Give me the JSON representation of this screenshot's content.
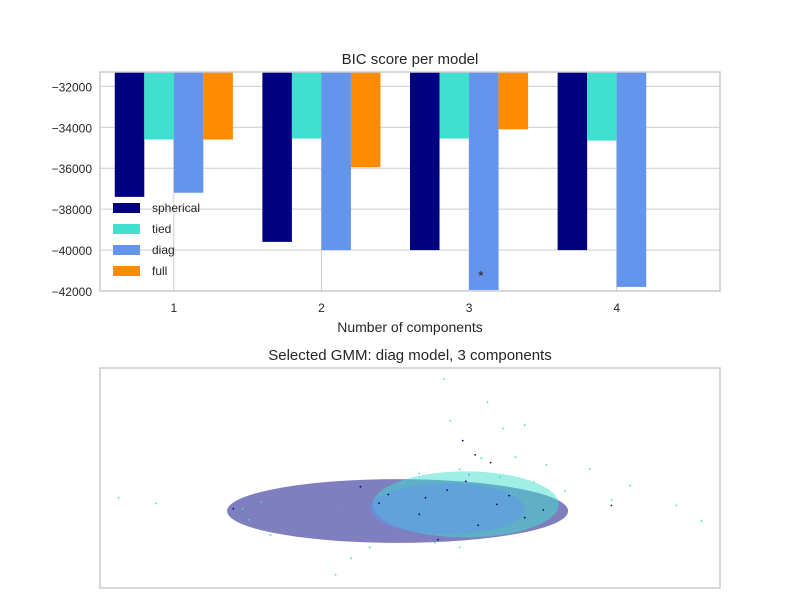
{
  "chart_data": [
    {
      "type": "bar",
      "title": "BIC score per model",
      "xlabel": "Number of components",
      "ylabel": "",
      "categories": [
        "1",
        "2",
        "3",
        "4"
      ],
      "ylim": [
        -42000,
        -31300
      ],
      "yticks": [
        -32000,
        -34000,
        -36000,
        -38000,
        -40000,
        -42000
      ],
      "ytick_labels": [
        "−32000",
        "−34000",
        "−36000",
        "−38000",
        "−40000",
        "−42000"
      ],
      "grid": true,
      "legend_position": "lower-left",
      "series": [
        {
          "name": "spherical",
          "color": "#000080",
          "values": [
            -37400,
            -39600,
            -40000,
            -40000
          ]
        },
        {
          "name": "tied",
          "color": "#40e0d0",
          "values": [
            -34600,
            -34550,
            -34550,
            -34650
          ]
        },
        {
          "name": "diag",
          "color": "#6495ed",
          "values": [
            -37200,
            -40000,
            -41950,
            -41800
          ]
        },
        {
          "name": "full",
          "color": "#ff8c00",
          "values": [
            -34600,
            -35950,
            -34100,
            null
          ]
        }
      ],
      "annotation": {
        "text": "*",
        "category": "3",
        "y": -41200
      }
    },
    {
      "type": "scatter",
      "title": "Selected GMM: diag model, 3 components",
      "xlabel": "",
      "ylabel": "",
      "xlim": [
        -10,
        10
      ],
      "ylim": [
        -10,
        10
      ],
      "grid": false,
      "components": [
        {
          "color": "#000080",
          "center": [
            -0.4,
            -3.0
          ],
          "width": 11.0,
          "height": 5.8
        },
        {
          "color": "#40e0d0",
          "center": [
            1.8,
            -2.4
          ],
          "width": 6.0,
          "height": 6.0
        },
        {
          "color": "#6495ed",
          "center": [
            1.2,
            -2.8
          ],
          "width": 5.0,
          "height": 4.6
        }
      ],
      "points": [
        {
          "color": "#40e0d0",
          "x": -9.4,
          "y": -1.8
        },
        {
          "color": "#40e0d0",
          "x": -8.2,
          "y": -2.3
        },
        {
          "color": "#40e0d0",
          "x": -5.4,
          "y": -2.8
        },
        {
          "color": "#40e0d0",
          "x": -4.8,
          "y": -2.2
        },
        {
          "color": "#40e0d0",
          "x": -5.2,
          "y": -3.8
        },
        {
          "color": "#40e0d0",
          "x": -4.5,
          "y": -5.2
        },
        {
          "color": "#40e0d0",
          "x": -2.4,
          "y": -8.8
        },
        {
          "color": "#40e0d0",
          "x": -1.9,
          "y": -7.3
        },
        {
          "color": "#40e0d0",
          "x": 1.1,
          "y": 9.0
        },
        {
          "color": "#40e0d0",
          "x": 2.5,
          "y": 6.9
        },
        {
          "color": "#40e0d0",
          "x": 1.3,
          "y": 5.2
        },
        {
          "color": "#40e0d0",
          "x": 3.0,
          "y": 4.5
        },
        {
          "color": "#40e0d0",
          "x": 3.7,
          "y": 4.8
        },
        {
          "color": "#40e0d0",
          "x": 4.4,
          "y": 1.2
        },
        {
          "color": "#40e0d0",
          "x": 3.4,
          "y": 1.9
        },
        {
          "color": "#40e0d0",
          "x": 5.8,
          "y": 0.8
        },
        {
          "color": "#40e0d0",
          "x": 7.1,
          "y": -0.7
        },
        {
          "color": "#40e0d0",
          "x": 8.6,
          "y": -2.5
        },
        {
          "color": "#40e0d0",
          "x": 9.4,
          "y": -3.9
        },
        {
          "color": "#40e0d0",
          "x": 6.5,
          "y": -2.0
        },
        {
          "color": "#40e0d0",
          "x": -1.3,
          "y": -6.3
        },
        {
          "color": "#40e0d0",
          "x": 0.8,
          "y": -5.9
        },
        {
          "color": "#40e0d0",
          "x": 1.6,
          "y": -6.3
        },
        {
          "color": "#40e0d0",
          "x": 5.0,
          "y": -1.2
        },
        {
          "color": "#40e0d0",
          "x": 0.3,
          "y": 0.4
        },
        {
          "color": "#40e0d0",
          "x": -0.2,
          "y": -0.5
        },
        {
          "color": "#40e0d0",
          "x": 1.6,
          "y": 0.8
        },
        {
          "color": "#40e0d0",
          "x": 2.3,
          "y": 1.8
        },
        {
          "color": "#40e0d0",
          "x": 2.9,
          "y": 0.1
        },
        {
          "color": "#40e0d0",
          "x": 4.0,
          "y": -0.4
        },
        {
          "color": "#000080",
          "x": 1.7,
          "y": 3.4
        },
        {
          "color": "#000080",
          "x": 2.1,
          "y": 2.1
        },
        {
          "color": "#000080",
          "x": 2.6,
          "y": 1.4
        },
        {
          "color": "#000080",
          "x": -1.0,
          "y": -2.3
        },
        {
          "color": "#000080",
          "x": -0.7,
          "y": -1.5
        },
        {
          "color": "#000080",
          "x": 0.3,
          "y": -3.3
        },
        {
          "color": "#000080",
          "x": 1.2,
          "y": -1.1
        },
        {
          "color": "#000080",
          "x": 2.8,
          "y": -2.4
        },
        {
          "color": "#000080",
          "x": 3.7,
          "y": -3.6
        },
        {
          "color": "#000080",
          "x": 0.9,
          "y": -5.6
        },
        {
          "color": "#000080",
          "x": 2.2,
          "y": -4.3
        },
        {
          "color": "#000080",
          "x": 3.2,
          "y": -1.6
        },
        {
          "color": "#000080",
          "x": -1.6,
          "y": -0.8
        },
        {
          "color": "#000080",
          "x": 4.3,
          "y": -2.9
        },
        {
          "color": "#000080",
          "x": 1.8,
          "y": -0.3
        },
        {
          "color": "#000080",
          "x": -5.7,
          "y": -2.8
        },
        {
          "color": "#000080",
          "x": 6.5,
          "y": -2.5
        },
        {
          "color": "#000080",
          "x": 0.5,
          "y": -1.8
        },
        {
          "color": "#6495ed",
          "x": 0.2,
          "y": -2.9
        },
        {
          "color": "#6495ed",
          "x": 1.1,
          "y": -2.2
        },
        {
          "color": "#6495ed",
          "x": 1.9,
          "y": -3.1
        },
        {
          "color": "#6495ed",
          "x": 2.6,
          "y": -3.5
        },
        {
          "color": "#6495ed",
          "x": 3.1,
          "y": -2.7
        },
        {
          "color": "#6495ed",
          "x": -0.6,
          "y": -3.6
        },
        {
          "color": "#6495ed",
          "x": 0.7,
          "y": -4.1
        },
        {
          "color": "#6495ed",
          "x": 1.5,
          "y": -1.6
        },
        {
          "color": "#6495ed",
          "x": 2.4,
          "y": -2.0
        },
        {
          "color": "#6495ed",
          "x": 3.5,
          "y": -1.4
        },
        {
          "color": "#6495ed",
          "x": -1.2,
          "y": -2.0
        },
        {
          "color": "#6495ed",
          "x": 0.4,
          "y": -1.2
        },
        {
          "color": "#6495ed",
          "x": 2.0,
          "y": -4.8
        },
        {
          "color": "#6495ed",
          "x": 2.9,
          "y": -4.4
        },
        {
          "color": "#6495ed",
          "x": 1.3,
          "y": -3.7
        },
        {
          "color": "#6495ed",
          "x": 0.0,
          "y": -4.6
        },
        {
          "color": "#6495ed",
          "x": 1.6,
          "y": -5.2
        },
        {
          "color": "#6495ed",
          "x": 4.6,
          "y": -2.1
        },
        {
          "color": "#6495ed",
          "x": -2.2,
          "y": -3.0
        },
        {
          "color": "#6495ed",
          "x": 1.9,
          "y": 0.3
        }
      ]
    }
  ]
}
